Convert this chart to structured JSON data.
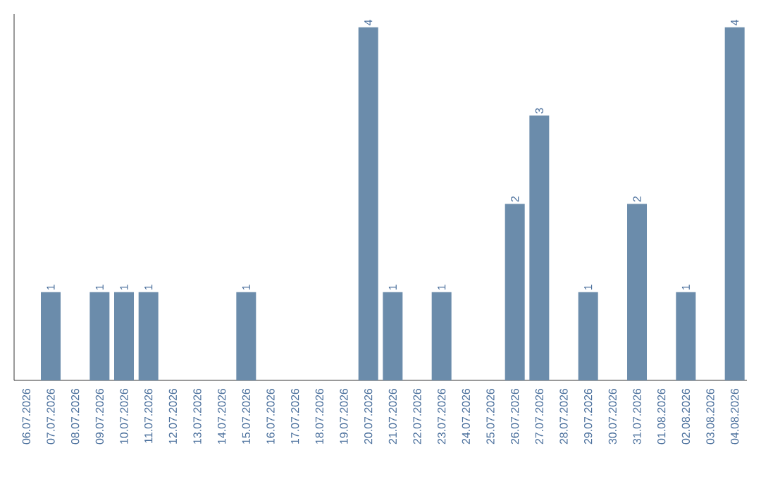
{
  "chart_data": {
    "type": "bar",
    "categories": [
      "06.07.2026",
      "07.07.2026",
      "08.07.2026",
      "09.07.2026",
      "10.07.2026",
      "11.07.2026",
      "12.07.2026",
      "13.07.2026",
      "14.07.2026",
      "15.07.2026",
      "16.07.2026",
      "17.07.2026",
      "18.07.2026",
      "19.07.2026",
      "20.07.2026",
      "21.07.2026",
      "22.07.2026",
      "23.07.2026",
      "24.07.2026",
      "25.07.2026",
      "26.07.2026",
      "27.07.2026",
      "28.07.2026",
      "29.07.2026",
      "30.07.2026",
      "31.07.2026",
      "01.08.2026",
      "02.08.2026",
      "03.08.2026",
      "04.08.2026"
    ],
    "values": [
      0,
      1,
      0,
      1,
      1,
      1,
      0,
      0,
      0,
      1,
      0,
      0,
      0,
      0,
      4,
      1,
      0,
      1,
      0,
      0,
      2,
      3,
      0,
      1,
      0,
      2,
      0,
      1,
      0,
      4
    ],
    "value_labels": [
      null,
      "1",
      null,
      "1",
      "1",
      "1",
      null,
      null,
      null,
      "1",
      null,
      null,
      null,
      null,
      "4",
      "1",
      null,
      "1",
      null,
      null,
      "2",
      "3",
      null,
      "1",
      null,
      "2",
      null,
      "1",
      null,
      "4"
    ],
    "color": "#6b8cab",
    "ylim": [
      0,
      4.15
    ],
    "tick_labels": "x",
    "grid": false
  }
}
